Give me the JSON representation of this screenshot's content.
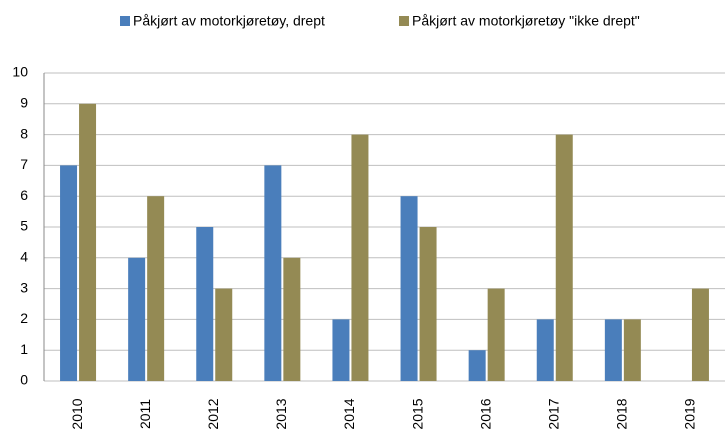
{
  "chart_data": {
    "type": "bar",
    "categories": [
      "2010",
      "2011",
      "2012",
      "2013",
      "2014",
      "2015",
      "2016",
      "2017",
      "2018",
      "2019"
    ],
    "series": [
      {
        "name": "Påkjørt av motorkjøretøy, drept",
        "color": "#4a7ebb",
        "values": [
          7,
          4,
          5,
          7,
          2,
          6,
          1,
          2,
          2,
          0
        ]
      },
      {
        "name": "Påkjørt av motorkjøretøy \"ikke drept\"",
        "color": "#948a54",
        "values": [
          9,
          6,
          3,
          4,
          8,
          5,
          3,
          8,
          2,
          3
        ]
      }
    ],
    "ylim": [
      0,
      10
    ],
    "yticks": [
      0,
      1,
      2,
      3,
      4,
      5,
      6,
      7,
      8,
      9,
      10
    ],
    "grid": true,
    "legend": "top"
  }
}
